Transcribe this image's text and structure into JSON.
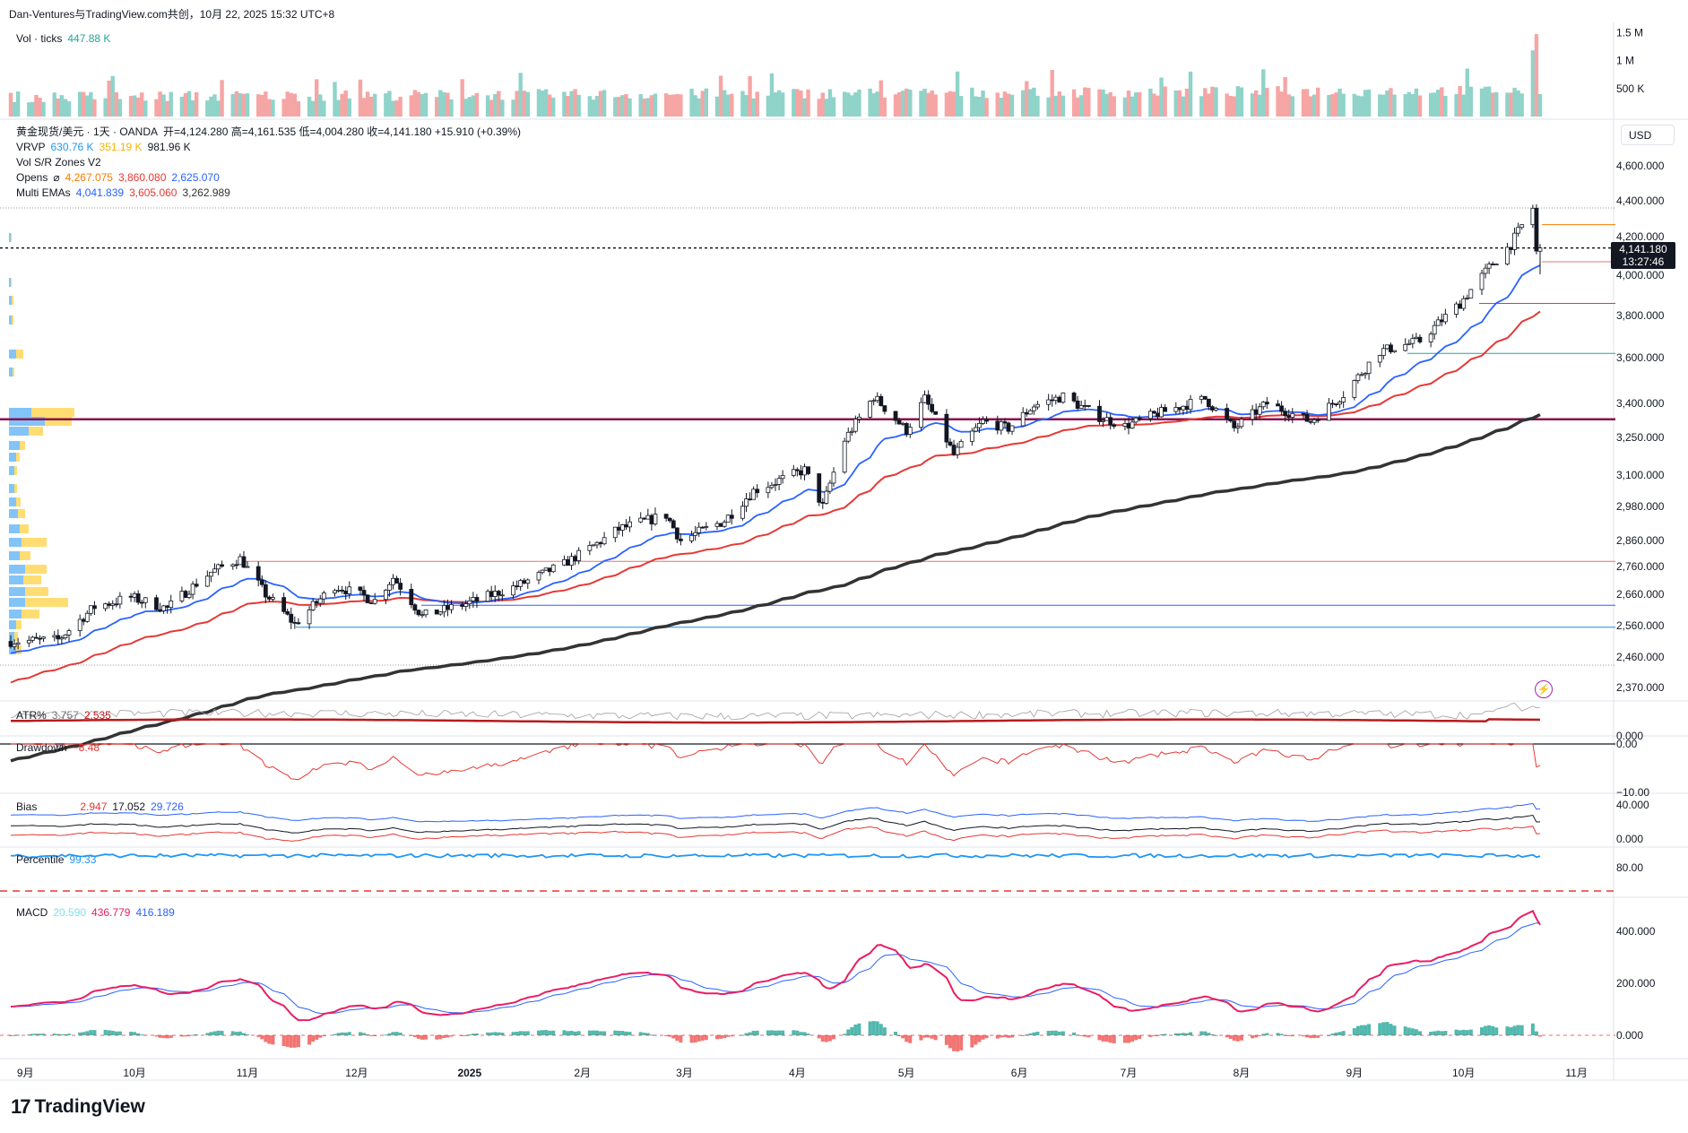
{
  "header": "Dan-Ventures与TradingView.com共创，10月 22, 2025 15:32 UTC+8",
  "currency_button": "USD",
  "logo_text": "TradingView",
  "current_price": {
    "value": "4,141.180",
    "countdown": "13:27:46"
  },
  "legends": {
    "volume": {
      "name": "Vol · ticks",
      "value": "447.88 K",
      "color": "#26a69a"
    },
    "main": {
      "symbol": "黄金现货/美元 · 1天 · OANDA",
      "ohlc": "开=4,124.280  高=4,161.535  低=4,004.280  收=4,141.180  +15.910 (+0.39%)",
      "change_color": "#26a69a"
    },
    "vrvp": {
      "name": "VRVP",
      "v1": "630.76 K",
      "v2": "351.19 K",
      "v3": "981.96 K"
    },
    "volsr": {
      "name": "Vol S/R Zones V2"
    },
    "opens": {
      "name": "Opens",
      "sym": "⌀",
      "v1": "4,267.075",
      "v2": "3,860.080",
      "v3": "2,625.070"
    },
    "emas": {
      "name": "Multi EMAs",
      "v1": "4,041.839",
      "v2": "3,605.060",
      "v3": "3,262.989"
    },
    "atr": {
      "name": "ATR%",
      "v1": "3.757",
      "v2": "2.535"
    },
    "drawdown": {
      "name": "Drawdown",
      "v1": "−8.48"
    },
    "bias": {
      "name": "Bias",
      "v1": "2.947",
      "v2": "17.052",
      "v3": "29.726"
    },
    "percentile": {
      "name": "Percentile",
      "v1": "99.33"
    },
    "macd": {
      "name": "MACD",
      "v1": "20.590",
      "v2": "436.779",
      "v3": "416.189"
    }
  },
  "axes": {
    "volume_ticks": [
      "1.5 M",
      "1 M",
      "500 K"
    ],
    "price_ticks": [
      "4,600.000",
      "4,400.000",
      "4,200.000",
      "4,000.000",
      "3,800.000",
      "3,600.000",
      "3,400.000",
      "3,250.000",
      "3,100.000",
      "2,980.000",
      "2,860.000",
      "2,760.000",
      "2,660.000",
      "2,560.000",
      "2,460.000",
      "2,370.000"
    ],
    "atr_ticks": [
      "0.000"
    ],
    "drawdown_ticks": [
      "0.00",
      "−10.00"
    ],
    "bias_ticks": [
      "40.000",
      "0.000"
    ],
    "percentile_ticks": [
      "80.00"
    ],
    "macd_ticks": [
      "400.000",
      "200.000",
      "0.000"
    ],
    "time_ticks": [
      "9月",
      "10月",
      "11月",
      "12月",
      "2025",
      "2月",
      "3月",
      "4月",
      "5月",
      "6月",
      "7月",
      "8月",
      "9月",
      "10月",
      "11月"
    ]
  },
  "chart_data": {
    "type": "line",
    "title": "黄金现货/美元 · 1天 · OANDA",
    "x_range": [
      "2024-08-28",
      "2025-10-22"
    ],
    "price_range": [
      2370,
      4600
    ],
    "close_anchors": [
      {
        "date": "2024-08-28",
        "value": 2510
      },
      {
        "date": "2024-09-10",
        "value": 2515
      },
      {
        "date": "2024-09-20",
        "value": 2620
      },
      {
        "date": "2024-09-30",
        "value": 2650
      },
      {
        "date": "2024-10-10",
        "value": 2615
      },
      {
        "date": "2024-10-22",
        "value": 2740
      },
      {
        "date": "2024-10-30",
        "value": 2790
      },
      {
        "date": "2024-11-06",
        "value": 2660
      },
      {
        "date": "2024-11-14",
        "value": 2565
      },
      {
        "date": "2024-11-25",
        "value": 2690
      },
      {
        "date": "2024-12-06",
        "value": 2640
      },
      {
        "date": "2024-12-11",
        "value": 2720
      },
      {
        "date": "2024-12-19",
        "value": 2590
      },
      {
        "date": "2025-01-03",
        "value": 2640
      },
      {
        "date": "2025-01-14",
        "value": 2690
      },
      {
        "date": "2025-01-27",
        "value": 2770
      },
      {
        "date": "2025-02-11",
        "value": 2900
      },
      {
        "date": "2025-02-24",
        "value": 2950
      },
      {
        "date": "2025-02-28",
        "value": 2860
      },
      {
        "date": "2025-03-12",
        "value": 2930
      },
      {
        "date": "2025-03-20",
        "value": 3040
      },
      {
        "date": "2025-04-03",
        "value": 3120
      },
      {
        "date": "2025-04-08",
        "value": 2980
      },
      {
        "date": "2025-04-14",
        "value": 3240
      },
      {
        "date": "2025-04-22",
        "value": 3430
      },
      {
        "date": "2025-05-01",
        "value": 3280
      },
      {
        "date": "2025-05-06",
        "value": 3420
      },
      {
        "date": "2025-05-14",
        "value": 3180
      },
      {
        "date": "2025-05-22",
        "value": 3320
      },
      {
        "date": "2025-05-29",
        "value": 3290
      },
      {
        "date": "2025-06-05",
        "value": 3390
      },
      {
        "date": "2025-06-13",
        "value": 3430
      },
      {
        "date": "2025-06-23",
        "value": 3340
      },
      {
        "date": "2025-06-30",
        "value": 3300
      },
      {
        "date": "2025-07-08",
        "value": 3350
      },
      {
        "date": "2025-07-22",
        "value": 3420
      },
      {
        "date": "2025-07-30",
        "value": 3290
      },
      {
        "date": "2025-08-08",
        "value": 3400
      },
      {
        "date": "2025-08-20",
        "value": 3320
      },
      {
        "date": "2025-08-29",
        "value": 3440
      },
      {
        "date": "2025-09-08",
        "value": 3630
      },
      {
        "date": "2025-09-19",
        "value": 3680
      },
      {
        "date": "2025-09-30",
        "value": 3860
      },
      {
        "date": "2025-10-08",
        "value": 4040
      },
      {
        "date": "2025-10-14",
        "value": 4160
      },
      {
        "date": "2025-10-20",
        "value": 4360
      },
      {
        "date": "2025-10-21",
        "value": 4120
      },
      {
        "date": "2025-10-22",
        "value": 4141.18
      }
    ],
    "series": [
      {
        "name": "Multi EMAs 1",
        "last": 4041.839,
        "color": "#2962ff"
      },
      {
        "name": "Multi EMAs 2",
        "last": 3605.06,
        "color": "#e53935"
      },
      {
        "name": "Multi EMAs 3",
        "last": 3262.989,
        "color": "#333333"
      }
    ],
    "horizontal_levels": [
      {
        "value": 4267.075,
        "color": "#f57c00"
      },
      {
        "value": 4141.18,
        "color": "#131722"
      },
      {
        "value": 4070,
        "color": "#e57373"
      },
      {
        "value": 3860.08,
        "color": "#e53935"
      },
      {
        "value": 3620,
        "color": "#26a69a"
      },
      {
        "value": 3330,
        "color": "#880e4f"
      },
      {
        "value": 2780,
        "color": "#e57373"
      },
      {
        "value": 2625.07,
        "color": "#2962ff"
      },
      {
        "value": 2555,
        "color": "#1e88e5"
      }
    ],
    "volume_range": [
      0,
      1600000
    ],
    "macd_range": [
      -20,
      460
    ],
    "grid": false,
    "legend_position": "top-left"
  }
}
